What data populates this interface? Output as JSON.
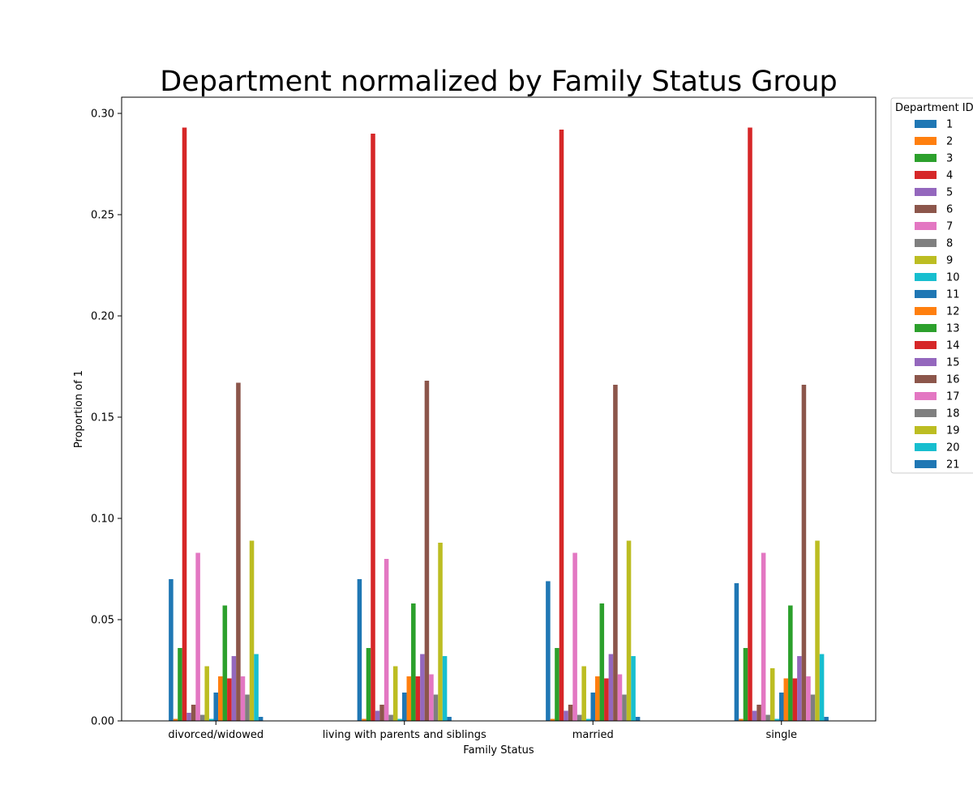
{
  "chart_data": {
    "type": "bar",
    "title": "Department normalized by Family Status Group",
    "xlabel": "Family Status",
    "ylabel": "Proportion of 1",
    "ylim": [
      0,
      0.308
    ],
    "yticks": [
      "0.00",
      "0.05",
      "0.10",
      "0.15",
      "0.20",
      "0.25",
      "0.30"
    ],
    "categories": [
      "divorced/widowed",
      "living with parents and siblings",
      "married",
      "single"
    ],
    "legend_title": "Department ID",
    "legend_position": "outside-right-top",
    "grid": false,
    "colors": [
      "#1f77b4",
      "#ff7f0e",
      "#2ca02c",
      "#d62728",
      "#9467bd",
      "#8c564b",
      "#e377c2",
      "#7f7f7f",
      "#bcbd22",
      "#17becf"
    ],
    "series": [
      {
        "name": "1",
        "values": [
          0.07,
          0.07,
          0.069,
          0.068
        ]
      },
      {
        "name": "2",
        "values": [
          0.001,
          0.001,
          0.001,
          0.001
        ]
      },
      {
        "name": "3",
        "values": [
          0.036,
          0.036,
          0.036,
          0.036
        ]
      },
      {
        "name": "4",
        "values": [
          0.293,
          0.29,
          0.292,
          0.293
        ]
      },
      {
        "name": "5",
        "values": [
          0.004,
          0.005,
          0.005,
          0.005
        ]
      },
      {
        "name": "6",
        "values": [
          0.008,
          0.008,
          0.008,
          0.008
        ]
      },
      {
        "name": "7",
        "values": [
          0.083,
          0.08,
          0.083,
          0.083
        ]
      },
      {
        "name": "8",
        "values": [
          0.003,
          0.003,
          0.003,
          0.003
        ]
      },
      {
        "name": "9",
        "values": [
          0.027,
          0.027,
          0.027,
          0.026
        ]
      },
      {
        "name": "10",
        "values": [
          0.001,
          0.001,
          0.001,
          0.001
        ]
      },
      {
        "name": "11",
        "values": [
          0.014,
          0.014,
          0.014,
          0.014
        ]
      },
      {
        "name": "12",
        "values": [
          0.022,
          0.022,
          0.022,
          0.021
        ]
      },
      {
        "name": "13",
        "values": [
          0.057,
          0.058,
          0.058,
          0.057
        ]
      },
      {
        "name": "14",
        "values": [
          0.021,
          0.022,
          0.021,
          0.021
        ]
      },
      {
        "name": "15",
        "values": [
          0.032,
          0.033,
          0.033,
          0.032
        ]
      },
      {
        "name": "16",
        "values": [
          0.167,
          0.168,
          0.166,
          0.166
        ]
      },
      {
        "name": "17",
        "values": [
          0.022,
          0.023,
          0.023,
          0.022
        ]
      },
      {
        "name": "18",
        "values": [
          0.013,
          0.013,
          0.013,
          0.013
        ]
      },
      {
        "name": "19",
        "values": [
          0.089,
          0.088,
          0.089,
          0.089
        ]
      },
      {
        "name": "20",
        "values": [
          0.033,
          0.032,
          0.032,
          0.033
        ]
      },
      {
        "name": "21",
        "values": [
          0.002,
          0.002,
          0.002,
          0.002
        ]
      }
    ]
  }
}
